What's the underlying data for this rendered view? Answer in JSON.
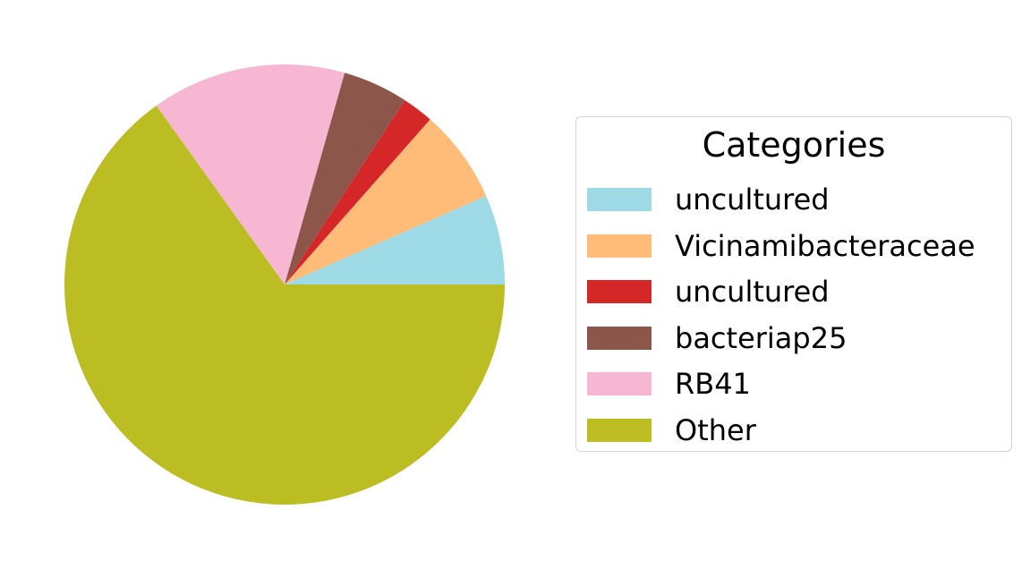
{
  "chart_data": {
    "type": "pie",
    "legend": {
      "title": "Categories",
      "placement": "right"
    },
    "start_angle_deg": 0,
    "direction": "counterclockwise",
    "slices": [
      {
        "label": "uncultured",
        "value": 6.6,
        "color": "#9edae5"
      },
      {
        "label": "Vicinamibacteraceae",
        "value": 6.9,
        "color": "#ffbb78"
      },
      {
        "label": "uncultured",
        "value": 2.3,
        "color": "#d62728"
      },
      {
        "label": "bacteriap25",
        "value": 4.8,
        "color": "#8c564b"
      },
      {
        "label": "RB41",
        "value": 14.3,
        "color": "#f7b6d2"
      },
      {
        "label": "Other",
        "value": 65.1,
        "color": "#bcbd22"
      }
    ]
  }
}
